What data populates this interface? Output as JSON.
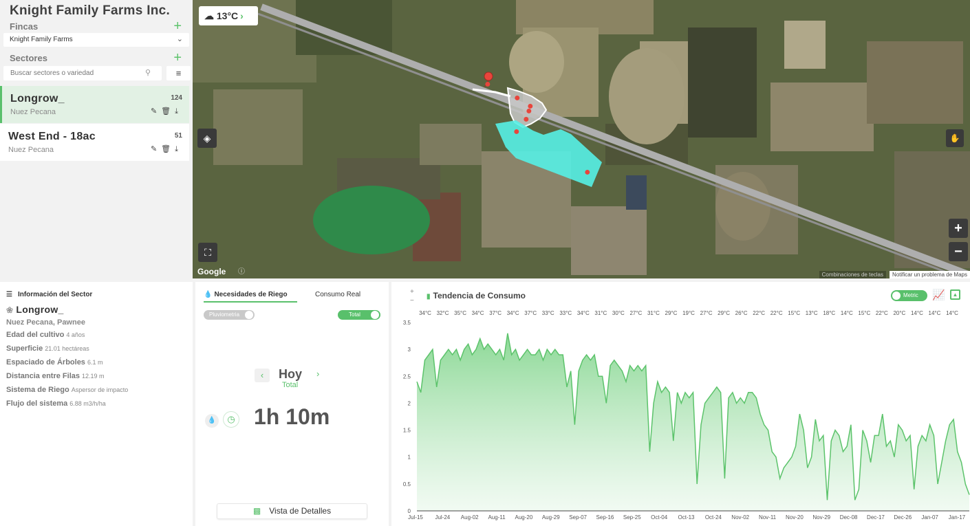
{
  "company": "Knight Family Farms Inc.",
  "fincas": {
    "label": "Fincas",
    "selected": "Knight Family Farms"
  },
  "sectores": {
    "label": "Sectores",
    "search_placeholder": "Buscar sectores o variedad"
  },
  "sector_list": [
    {
      "name": "Longrow_",
      "variety": "Nuez Pecana",
      "count": "124"
    },
    {
      "name": "West End - 18ac",
      "variety": "Nuez Pecana",
      "count": "51"
    }
  ],
  "map": {
    "weather": "13°C",
    "google": "Google",
    "attribution": "Combinaciones de teclas",
    "report": "Notificar un problema de Maps"
  },
  "info": {
    "header": "Información del Sector",
    "name": "Longrow_",
    "subtitle": "Nuez Pecana, Pawnee",
    "rows": [
      {
        "label": "Edad del cultivo",
        "value": "4 años"
      },
      {
        "label": "Superficie",
        "value": "21.01 hectáreas"
      },
      {
        "label": "Espaciado de Árboles",
        "value": "6.1 m"
      },
      {
        "label": "Distancia entre Filas",
        "value": "12.19 m"
      },
      {
        "label": "Sistema de Riego",
        "value": "Aspersor de impacto"
      },
      {
        "label": "Flujo del sistema",
        "value": "6.88 m3/h/ha"
      }
    ]
  },
  "riego": {
    "tab_active": "Necesidades de Riego",
    "tab_inactive": "Consumo Real",
    "toggle_pluvio": "Pluviometria",
    "toggle_total": "Total",
    "day": "Hoy",
    "day_sub": "Total",
    "duration": "1h 10m",
    "details_button": "Vista de Detalles"
  },
  "trend": {
    "title": "Tendencia de Consumo",
    "metric_toggle": "Metric"
  },
  "colors": {
    "accent": "#59c06b",
    "polygon": "#55f0e6",
    "marker": "#e8453c"
  },
  "chart_data": {
    "type": "area",
    "title": "Tendencia de Consumo",
    "ylim": [
      0,
      3.5
    ],
    "yticks": [
      "0",
      "0.5",
      "1",
      "1.5",
      "2",
      "2.5",
      "3",
      "3.5"
    ],
    "x_ticks": [
      "Jul-15",
      "Jul-24",
      "Aug-02",
      "Aug-11",
      "Aug-20",
      "Aug-29",
      "Sep-07",
      "Sep-16",
      "Sep-25",
      "Oct-04",
      "Oct-13",
      "Oct-24",
      "Nov-02",
      "Nov-11",
      "Nov-20",
      "Nov-29",
      "Dec-08",
      "Dec-17",
      "Dec-26",
      "Jan-07",
      "Jan-17"
    ],
    "temperatures": [
      "34°C",
      "32°C",
      "35°C",
      "34°C",
      "37°C",
      "34°C",
      "37°C",
      "33°C",
      "33°C",
      "34°C",
      "31°C",
      "30°C",
      "27°C",
      "31°C",
      "29°C",
      "19°C",
      "27°C",
      "29°C",
      "26°C",
      "22°C",
      "22°C",
      "15°C",
      "13°C",
      "18°C",
      "14°C",
      "15°C",
      "22°C",
      "20°C",
      "14°C",
      "14°C",
      "14°C"
    ],
    "values": [
      2.4,
      2.2,
      2.8,
      2.9,
      3.0,
      2.3,
      2.8,
      2.9,
      3.0,
      2.9,
      3.0,
      2.8,
      3.0,
      3.1,
      2.9,
      3.0,
      3.2,
      3.0,
      3.1,
      3.0,
      2.9,
      3.0,
      2.8,
      3.3,
      2.9,
      3.0,
      2.8,
      2.9,
      3.0,
      2.9,
      2.9,
      3.0,
      2.8,
      3.0,
      2.9,
      3.0,
      2.9,
      2.9,
      2.3,
      2.6,
      1.6,
      2.6,
      2.8,
      2.9,
      2.8,
      2.9,
      2.5,
      2.5,
      2.0,
      2.7,
      2.8,
      2.7,
      2.6,
      2.4,
      2.7,
      2.6,
      2.7,
      2.6,
      2.7,
      1.1,
      2.0,
      2.4,
      2.2,
      2.3,
      2.2,
      1.3,
      2.2,
      2.0,
      2.2,
      2.1,
      2.2,
      0.5,
      1.6,
      2.0,
      2.1,
      2.2,
      2.3,
      2.2,
      0.6,
      2.1,
      2.2,
      2.0,
      2.1,
      2.0,
      2.2,
      2.2,
      2.1,
      1.8,
      1.6,
      1.5,
      1.1,
      1.0,
      0.6,
      0.8,
      0.9,
      1.0,
      1.2,
      1.8,
      1.5,
      0.8,
      1.0,
      1.7,
      1.3,
      1.4,
      0.2,
      1.3,
      1.5,
      1.4,
      1.1,
      1.2,
      1.6,
      0.2,
      0.4,
      1.5,
      1.3,
      0.9,
      1.4,
      1.4,
      1.8,
      1.2,
      1.3,
      1.0,
      1.6,
      1.5,
      1.3,
      1.4,
      0.4,
      1.2,
      1.4,
      1.3,
      1.6,
      1.4,
      0.5,
      0.9,
      1.3,
      1.6,
      1.7,
      1.1,
      0.9,
      0.5,
      0.3
    ]
  }
}
